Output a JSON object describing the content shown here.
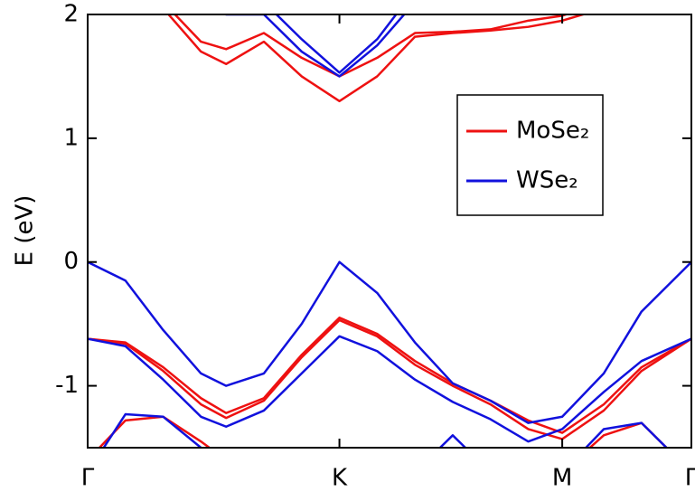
{
  "chart_data": {
    "type": "line",
    "y_label": "E (eV)",
    "x": [
      0,
      0.15,
      0.3,
      0.45,
      0.55,
      0.7,
      0.85,
      1.0,
      1.15,
      1.3,
      1.45,
      1.6,
      1.75,
      1.885,
      2.05,
      2.2,
      2.398
    ],
    "xlim": [
      0,
      2.398
    ],
    "xticks": [
      {
        "value": 0,
        "label": "Γ"
      },
      {
        "value": 1.0,
        "label": "K"
      },
      {
        "value": 1.885,
        "label": "M"
      },
      {
        "value": 2.398,
        "label": "Γ"
      }
    ],
    "ylim": [
      -1.5,
      2
    ],
    "yticks": [
      -1,
      0,
      1,
      2
    ],
    "grid": false,
    "legend": "upper right",
    "series": [
      {
        "name": "MoSe₂",
        "color": "#ee1111",
        "bands": [
          [
            -0.62,
            -0.65,
            -0.85,
            -1.1,
            -1.22,
            -1.1,
            -0.75,
            -0.45,
            -0.58,
            -0.8,
            -0.98,
            -1.12,
            -1.28,
            -1.38,
            -1.15,
            -0.85,
            -0.62
          ],
          [
            -0.62,
            -0.66,
            -0.88,
            -1.15,
            -1.26,
            -1.12,
            -0.77,
            -0.47,
            -0.6,
            -0.83,
            -1.0,
            -1.15,
            -1.35,
            -1.43,
            -1.2,
            -0.88,
            -0.62
          ],
          [
            -1.6,
            -1.28,
            -1.25,
            -1.45,
            -1.6,
            -1.7,
            -1.7,
            -1.7,
            -1.7,
            -1.7,
            -1.7,
            -1.7,
            -1.7,
            -1.7,
            -1.4,
            -1.3,
            -1.7
          ],
          [
            2.3,
            2.2,
            2.05,
            1.7,
            1.6,
            1.78,
            1.5,
            1.3,
            1.5,
            1.82,
            1.85,
            1.87,
            1.9,
            1.95,
            2.05,
            2.2,
            2.3
          ],
          [
            2.3,
            2.2,
            2.1,
            1.78,
            1.72,
            1.85,
            1.65,
            1.5,
            1.65,
            1.85,
            1.86,
            1.88,
            1.95,
            1.99,
            2.1,
            2.2,
            2.3
          ]
        ]
      },
      {
        "name": "WSe₂",
        "color": "#1111dd",
        "bands": [
          [
            0,
            -0.15,
            -0.55,
            -0.9,
            -1.0,
            -0.9,
            -0.5,
            0,
            -0.25,
            -0.65,
            -0.98,
            -1.12,
            -1.3,
            -1.25,
            -0.9,
            -0.4,
            0
          ],
          [
            -0.62,
            -0.68,
            -0.95,
            -1.25,
            -1.33,
            -1.2,
            -0.9,
            -0.6,
            -0.72,
            -0.95,
            -1.13,
            -1.27,
            -1.45,
            -1.35,
            -1.05,
            -0.8,
            -0.62
          ],
          [
            -1.7,
            -1.23,
            -1.25,
            -1.5,
            -1.7,
            -1.7,
            -1.7,
            -1.7,
            -1.7,
            -1.7,
            -1.4,
            -1.7,
            -1.7,
            -1.7,
            -1.35,
            -1.3,
            -1.7
          ],
          [
            2.4,
            2.3,
            2.2,
            2.1,
            2.0,
            2.0,
            1.7,
            1.5,
            1.75,
            2.1,
            2.3,
            2.4,
            2.4,
            2.4,
            2.4,
            2.4,
            2.4
          ],
          [
            2.4,
            2.3,
            2.25,
            2.15,
            2.1,
            2.1,
            1.8,
            1.53,
            1.8,
            2.2,
            2.3,
            2.4,
            2.4,
            2.4,
            2.4,
            2.4,
            2.4
          ]
        ]
      }
    ]
  }
}
